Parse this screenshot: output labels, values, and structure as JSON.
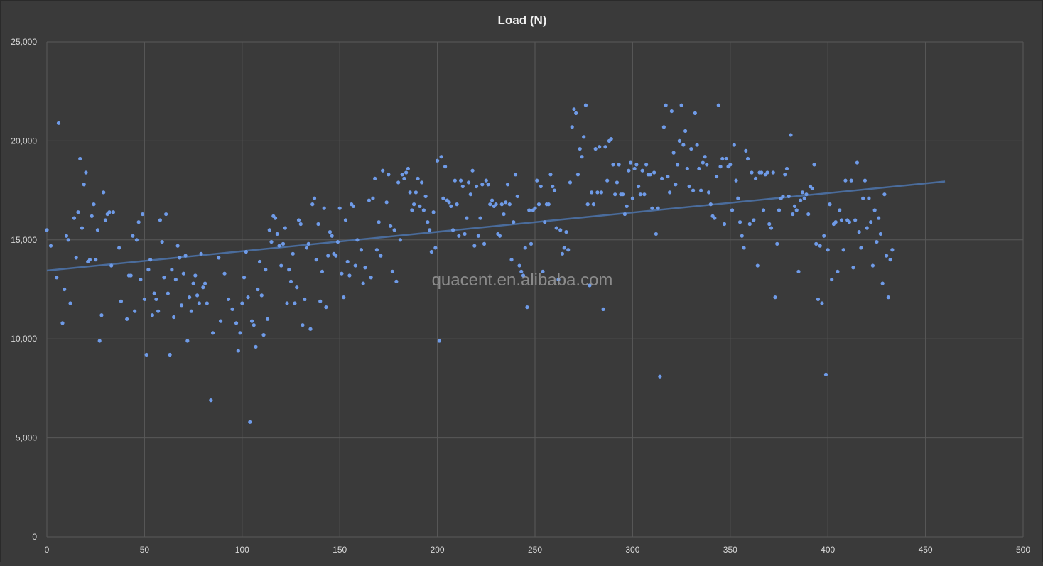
{
  "chart_data": {
    "type": "scatter",
    "title": "Load (N)",
    "watermark": "quacent.en.alibaba.com",
    "xlim": [
      0,
      500
    ],
    "ylim": [
      0,
      25000
    ],
    "x_ticks": [
      "0",
      "50",
      "100",
      "150",
      "200",
      "250",
      "300",
      "350",
      "400",
      "450",
      "500"
    ],
    "y_ticks": [
      "0",
      "5,000",
      "10,000",
      "15,000",
      "20,000",
      "25,000"
    ],
    "grid": true,
    "colors": {
      "background": "#3a3a3a",
      "grid": "#595959",
      "text": "#d9d9d9",
      "title": "#f2f2f2",
      "point": "#6f9be8",
      "trendline": "#4a6c9c"
    },
    "trendline": {
      "x": [
        0,
        460
      ],
      "y": [
        13450,
        17950
      ]
    },
    "points": [
      [
        0,
        15500
      ],
      [
        2,
        14700
      ],
      [
        5,
        13100
      ],
      [
        6,
        20900
      ],
      [
        8,
        10800
      ],
      [
        9,
        12500
      ],
      [
        10,
        15200
      ],
      [
        11,
        15000
      ],
      [
        12,
        11800
      ],
      [
        14,
        16100
      ],
      [
        15,
        14100
      ],
      [
        16,
        16400
      ],
      [
        17,
        19100
      ],
      [
        18,
        15600
      ],
      [
        19,
        17800
      ],
      [
        20,
        18400
      ],
      [
        21,
        13900
      ],
      [
        22,
        14000
      ],
      [
        23,
        16200
      ],
      [
        24,
        16800
      ],
      [
        25,
        14000
      ],
      [
        26,
        15500
      ],
      [
        27,
        9900
      ],
      [
        28,
        11200
      ],
      [
        29,
        17400
      ],
      [
        30,
        16000
      ],
      [
        31,
        16300
      ],
      [
        32,
        16400
      ],
      [
        33,
        13700
      ],
      [
        34,
        16400
      ],
      [
        37,
        14600
      ],
      [
        38,
        11900
      ],
      [
        41,
        11000
      ],
      [
        42,
        13200
      ],
      [
        43,
        13200
      ],
      [
        44,
        15200
      ],
      [
        45,
        11400
      ],
      [
        46,
        15000
      ],
      [
        47,
        15900
      ],
      [
        48,
        13000
      ],
      [
        49,
        16300
      ],
      [
        50,
        12000
      ],
      [
        51,
        9200
      ],
      [
        52,
        13500
      ],
      [
        53,
        14000
      ],
      [
        54,
        11200
      ],
      [
        55,
        12300
      ],
      [
        56,
        12000
      ],
      [
        57,
        11400
      ],
      [
        58,
        16000
      ],
      [
        59,
        14900
      ],
      [
        60,
        13100
      ],
      [
        61,
        16300
      ],
      [
        62,
        12300
      ],
      [
        63,
        9200
      ],
      [
        64,
        13500
      ],
      [
        65,
        11100
      ],
      [
        66,
        13000
      ],
      [
        67,
        14700
      ],
      [
        68,
        14100
      ],
      [
        69,
        11700
      ],
      [
        70,
        13300
      ],
      [
        71,
        14200
      ],
      [
        72,
        9900
      ],
      [
        73,
        12100
      ],
      [
        74,
        11400
      ],
      [
        75,
        12800
      ],
      [
        76,
        13200
      ],
      [
        77,
        12200
      ],
      [
        78,
        11800
      ],
      [
        79,
        14300
      ],
      [
        80,
        12600
      ],
      [
        81,
        12800
      ],
      [
        82,
        11800
      ],
      [
        84,
        6900
      ],
      [
        85,
        10300
      ],
      [
        88,
        14100
      ],
      [
        89,
        10900
      ],
      [
        91,
        13300
      ],
      [
        93,
        12000
      ],
      [
        95,
        11500
      ],
      [
        97,
        10800
      ],
      [
        98,
        9400
      ],
      [
        99,
        10300
      ],
      [
        100,
        11800
      ],
      [
        101,
        13100
      ],
      [
        102,
        14400
      ],
      [
        103,
        12100
      ],
      [
        104,
        5800
      ],
      [
        105,
        10900
      ],
      [
        106,
        10700
      ],
      [
        107,
        9600
      ],
      [
        108,
        12500
      ],
      [
        109,
        13900
      ],
      [
        110,
        12200
      ],
      [
        111,
        10200
      ],
      [
        112,
        13500
      ],
      [
        113,
        11000
      ],
      [
        114,
        15500
      ],
      [
        115,
        14900
      ],
      [
        116,
        16200
      ],
      [
        117,
        16100
      ],
      [
        118,
        15300
      ],
      [
        119,
        14700
      ],
      [
        120,
        13700
      ],
      [
        121,
        14800
      ],
      [
        122,
        15600
      ],
      [
        123,
        11800
      ],
      [
        124,
        13500
      ],
      [
        125,
        12900
      ],
      [
        126,
        14300
      ],
      [
        127,
        11800
      ],
      [
        128,
        12600
      ],
      [
        129,
        16000
      ],
      [
        130,
        15800
      ],
      [
        131,
        10700
      ],
      [
        132,
        12000
      ],
      [
        133,
        14600
      ],
      [
        134,
        14800
      ],
      [
        135,
        10500
      ],
      [
        136,
        16800
      ],
      [
        137,
        17100
      ],
      [
        138,
        14000
      ],
      [
        139,
        15800
      ],
      [
        140,
        11900
      ],
      [
        141,
        13400
      ],
      [
        142,
        16600
      ],
      [
        143,
        11600
      ],
      [
        144,
        14200
      ],
      [
        145,
        15400
      ],
      [
        146,
        15200
      ],
      [
        147,
        14300
      ],
      [
        148,
        14200
      ],
      [
        149,
        14900
      ],
      [
        150,
        16600
      ],
      [
        151,
        13300
      ],
      [
        152,
        12100
      ],
      [
        153,
        16000
      ],
      [
        154,
        13900
      ],
      [
        155,
        13200
      ],
      [
        156,
        16800
      ],
      [
        157,
        16700
      ],
      [
        158,
        13700
      ],
      [
        159,
        15000
      ],
      [
        161,
        14500
      ],
      [
        162,
        12800
      ],
      [
        163,
        13600
      ],
      [
        165,
        17000
      ],
      [
        166,
        13100
      ],
      [
        167,
        17100
      ],
      [
        168,
        18100
      ],
      [
        169,
        14500
      ],
      [
        170,
        15900
      ],
      [
        171,
        14200
      ],
      [
        172,
        18500
      ],
      [
        174,
        16900
      ],
      [
        175,
        18300
      ],
      [
        176,
        15700
      ],
      [
        177,
        13400
      ],
      [
        178,
        15500
      ],
      [
        179,
        12900
      ],
      [
        180,
        17900
      ],
      [
        181,
        15000
      ],
      [
        182,
        18300
      ],
      [
        183,
        18100
      ],
      [
        184,
        18400
      ],
      [
        185,
        18600
      ],
      [
        186,
        17400
      ],
      [
        187,
        16500
      ],
      [
        188,
        16800
      ],
      [
        189,
        17400
      ],
      [
        190,
        18100
      ],
      [
        191,
        16700
      ],
      [
        192,
        17900
      ],
      [
        193,
        16500
      ],
      [
        194,
        17200
      ],
      [
        195,
        15900
      ],
      [
        196,
        15500
      ],
      [
        197,
        14400
      ],
      [
        198,
        16400
      ],
      [
        199,
        14600
      ],
      [
        200,
        19000
      ],
      [
        201,
        9900
      ],
      [
        202,
        19200
      ],
      [
        203,
        17100
      ],
      [
        204,
        18700
      ],
      [
        205,
        17000
      ],
      [
        206,
        16900
      ],
      [
        207,
        16700
      ],
      [
        208,
        15500
      ],
      [
        209,
        18000
      ],
      [
        210,
        16800
      ],
      [
        211,
        15200
      ],
      [
        212,
        18000
      ],
      [
        213,
        17700
      ],
      [
        214,
        15300
      ],
      [
        215,
        16100
      ],
      [
        216,
        17900
      ],
      [
        217,
        17300
      ],
      [
        218,
        18500
      ],
      [
        219,
        14700
      ],
      [
        220,
        17700
      ],
      [
        221,
        15200
      ],
      [
        222,
        16100
      ],
      [
        223,
        17800
      ],
      [
        224,
        14800
      ],
      [
        225,
        18000
      ],
      [
        226,
        17800
      ],
      [
        227,
        16800
      ],
      [
        228,
        17000
      ],
      [
        229,
        16700
      ],
      [
        230,
        16800
      ],
      [
        231,
        15300
      ],
      [
        232,
        15200
      ],
      [
        233,
        16800
      ],
      [
        234,
        16300
      ],
      [
        235,
        16900
      ],
      [
        236,
        17800
      ],
      [
        237,
        16800
      ],
      [
        238,
        14000
      ],
      [
        239,
        15900
      ],
      [
        240,
        18300
      ],
      [
        241,
        17200
      ],
      [
        242,
        13700
      ],
      [
        243,
        13400
      ],
      [
        244,
        13200
      ],
      [
        245,
        14600
      ],
      [
        246,
        11600
      ],
      [
        247,
        16500
      ],
      [
        248,
        14800
      ],
      [
        249,
        16500
      ],
      [
        250,
        16600
      ],
      [
        251,
        18000
      ],
      [
        252,
        16800
      ],
      [
        253,
        17700
      ],
      [
        254,
        13400
      ],
      [
        255,
        15900
      ],
      [
        256,
        16800
      ],
      [
        257,
        16800
      ],
      [
        258,
        18300
      ],
      [
        259,
        17700
      ],
      [
        260,
        17500
      ],
      [
        261,
        15600
      ],
      [
        262,
        13000
      ],
      [
        263,
        15500
      ],
      [
        264,
        14300
      ],
      [
        265,
        14600
      ],
      [
        266,
        15400
      ],
      [
        267,
        14500
      ],
      [
        268,
        17900
      ],
      [
        269,
        20700
      ],
      [
        270,
        21600
      ],
      [
        271,
        21400
      ],
      [
        272,
        18300
      ],
      [
        273,
        19600
      ],
      [
        274,
        19200
      ],
      [
        275,
        20200
      ],
      [
        276,
        21800
      ],
      [
        277,
        16800
      ],
      [
        278,
        12700
      ],
      [
        279,
        17400
      ],
      [
        280,
        16800
      ],
      [
        281,
        19600
      ],
      [
        282,
        17400
      ],
      [
        283,
        19700
      ],
      [
        284,
        17400
      ],
      [
        285,
        11500
      ],
      [
        286,
        19700
      ],
      [
        287,
        18000
      ],
      [
        288,
        20000
      ],
      [
        289,
        20100
      ],
      [
        290,
        18800
      ],
      [
        291,
        17300
      ],
      [
        292,
        17900
      ],
      [
        293,
        18800
      ],
      [
        294,
        17300
      ],
      [
        295,
        17300
      ],
      [
        296,
        16300
      ],
      [
        297,
        16700
      ],
      [
        298,
        18500
      ],
      [
        299,
        18900
      ],
      [
        300,
        17100
      ],
      [
        301,
        18600
      ],
      [
        302,
        18800
      ],
      [
        303,
        17700
      ],
      [
        304,
        17300
      ],
      [
        305,
        18500
      ],
      [
        306,
        17300
      ],
      [
        307,
        18800
      ],
      [
        308,
        18300
      ],
      [
        309,
        18300
      ],
      [
        310,
        16600
      ],
      [
        311,
        18400
      ],
      [
        312,
        15300
      ],
      [
        313,
        16600
      ],
      [
        314,
        8100
      ],
      [
        315,
        18100
      ],
      [
        316,
        20700
      ],
      [
        317,
        21800
      ],
      [
        318,
        18200
      ],
      [
        319,
        17400
      ],
      [
        320,
        21500
      ],
      [
        321,
        19400
      ],
      [
        322,
        17800
      ],
      [
        323,
        18800
      ],
      [
        324,
        20000
      ],
      [
        325,
        21800
      ],
      [
        326,
        19800
      ],
      [
        327,
        20500
      ],
      [
        328,
        18600
      ],
      [
        329,
        17700
      ],
      [
        330,
        19600
      ],
      [
        331,
        17500
      ],
      [
        332,
        21400
      ],
      [
        333,
        19800
      ],
      [
        334,
        18600
      ],
      [
        335,
        17500
      ],
      [
        336,
        18900
      ],
      [
        337,
        19200
      ],
      [
        338,
        18800
      ],
      [
        339,
        17400
      ],
      [
        340,
        16800
      ],
      [
        341,
        16200
      ],
      [
        342,
        16100
      ],
      [
        343,
        18200
      ],
      [
        344,
        21800
      ],
      [
        345,
        18700
      ],
      [
        346,
        19100
      ],
      [
        347,
        15800
      ],
      [
        348,
        19100
      ],
      [
        349,
        18700
      ],
      [
        350,
        18800
      ],
      [
        351,
        16500
      ],
      [
        352,
        19800
      ],
      [
        353,
        18000
      ],
      [
        354,
        17100
      ],
      [
        355,
        15900
      ],
      [
        356,
        15200
      ],
      [
        357,
        14600
      ],
      [
        358,
        19500
      ],
      [
        359,
        19100
      ],
      [
        360,
        15800
      ],
      [
        361,
        18400
      ],
      [
        362,
        16000
      ],
      [
        363,
        18100
      ],
      [
        364,
        13700
      ],
      [
        365,
        18400
      ],
      [
        366,
        18400
      ],
      [
        367,
        16500
      ],
      [
        368,
        18300
      ],
      [
        369,
        18400
      ],
      [
        370,
        15800
      ],
      [
        371,
        15600
      ],
      [
        372,
        18400
      ],
      [
        373,
        12100
      ],
      [
        374,
        14800
      ],
      [
        375,
        16500
      ],
      [
        376,
        17100
      ],
      [
        377,
        17200
      ],
      [
        378,
        18300
      ],
      [
        379,
        18600
      ],
      [
        380,
        17200
      ],
      [
        381,
        20300
      ],
      [
        382,
        16300
      ],
      [
        383,
        16700
      ],
      [
        384,
        16500
      ],
      [
        385,
        13400
      ],
      [
        386,
        17000
      ],
      [
        387,
        17400
      ],
      [
        388,
        17100
      ],
      [
        389,
        17300
      ],
      [
        390,
        16300
      ],
      [
        391,
        17700
      ],
      [
        392,
        17600
      ],
      [
        393,
        18800
      ],
      [
        394,
        14800
      ],
      [
        395,
        12000
      ],
      [
        396,
        14700
      ],
      [
        397,
        11800
      ],
      [
        398,
        15200
      ],
      [
        399,
        8200
      ],
      [
        400,
        14500
      ],
      [
        401,
        16800
      ],
      [
        402,
        13000
      ],
      [
        403,
        15800
      ],
      [
        404,
        15900
      ],
      [
        405,
        13400
      ],
      [
        406,
        16500
      ],
      [
        407,
        16000
      ],
      [
        408,
        14500
      ],
      [
        409,
        18000
      ],
      [
        410,
        16000
      ],
      [
        411,
        15900
      ],
      [
        412,
        18000
      ],
      [
        413,
        13600
      ],
      [
        414,
        16000
      ],
      [
        415,
        18900
      ],
      [
        416,
        15400
      ],
      [
        417,
        14600
      ],
      [
        418,
        17100
      ],
      [
        419,
        18000
      ],
      [
        420,
        15600
      ],
      [
        421,
        17100
      ],
      [
        422,
        15900
      ],
      [
        423,
        13700
      ],
      [
        424,
        16500
      ],
      [
        425,
        14900
      ],
      [
        426,
        16100
      ],
      [
        427,
        15300
      ],
      [
        428,
        12800
      ],
      [
        429,
        17300
      ],
      [
        430,
        14200
      ],
      [
        431,
        12100
      ],
      [
        432,
        14000
      ],
      [
        433,
        14500
      ]
    ]
  }
}
